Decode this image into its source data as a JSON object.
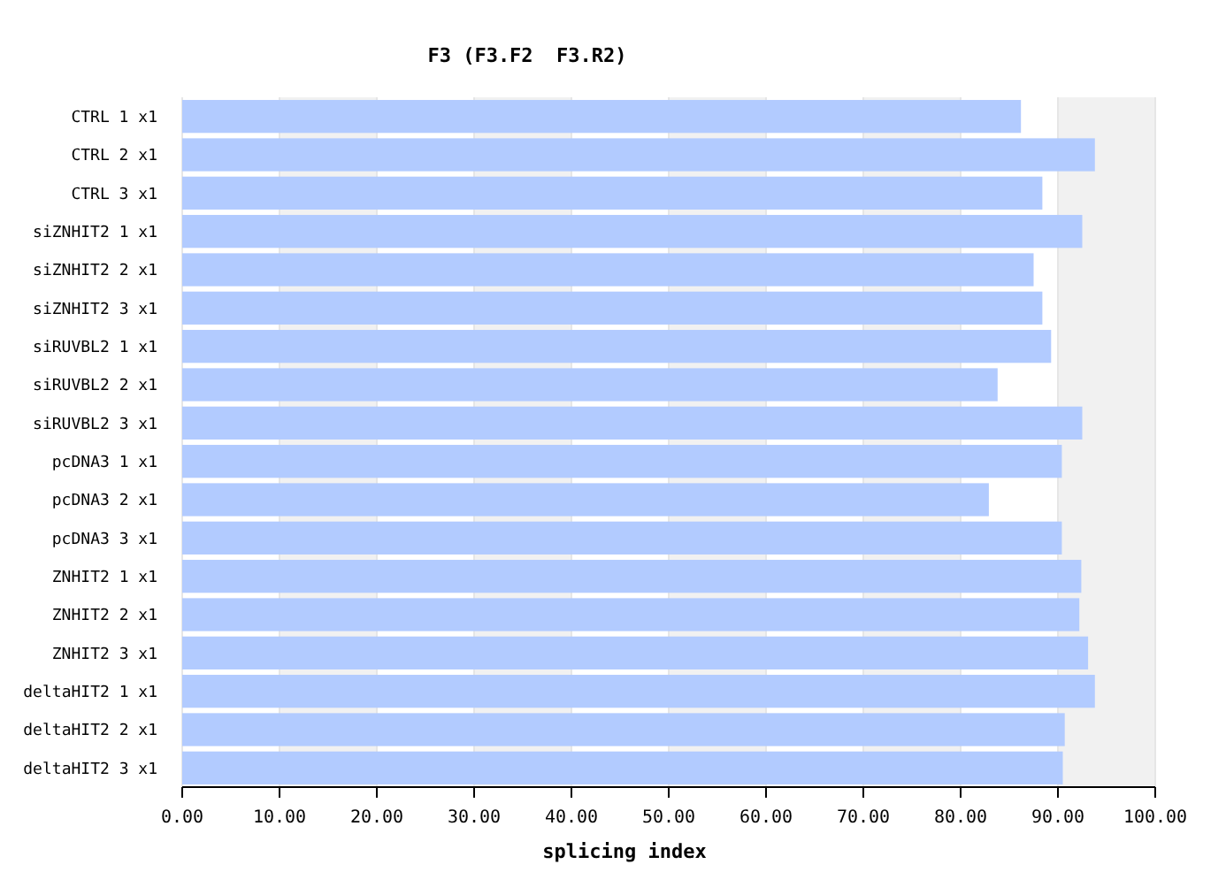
{
  "chart_data": {
    "type": "bar",
    "orientation": "horizontal",
    "title": "F3 (F3.F2  F3.R2)",
    "xlabel": "splicing index",
    "categories": [
      "CTRL 1 x1",
      "CTRL 2 x1",
      "CTRL 3 x1",
      "siZNHIT2 1 x1",
      "siZNHIT2 2 x1",
      "siZNHIT2 3 x1",
      "siRUVBL2 1 x1",
      "siRUVBL2 2 x1",
      "siRUVBL2 3 x1",
      "pcDNA3 1 x1",
      "pcDNA3 2 x1",
      "pcDNA3 3 x1",
      "ZNHIT2 1 x1",
      "ZNHIT2 2 x1",
      "ZNHIT2 3 x1",
      "deltaHIT2 1 x1",
      "deltaHIT2 2 x1",
      "deltaHIT2 3 x1"
    ],
    "values": [
      86.2,
      93.8,
      88.4,
      92.5,
      87.5,
      88.4,
      89.3,
      83.8,
      92.5,
      90.4,
      82.9,
      90.4,
      92.4,
      92.2,
      93.1,
      93.8,
      90.7,
      90.5
    ],
    "color": "#b2cbff",
    "xlim": [
      0,
      100
    ],
    "xticks": [
      {
        "value": 0,
        "label": "0.00"
      },
      {
        "value": 10,
        "label": "10.00"
      },
      {
        "value": 20,
        "label": "20.00"
      },
      {
        "value": 30,
        "label": "30.00"
      },
      {
        "value": 40,
        "label": "40.00"
      },
      {
        "value": 50,
        "label": "50.00"
      },
      {
        "value": 60,
        "label": "60.00"
      },
      {
        "value": 70,
        "label": "70.00"
      },
      {
        "value": 80,
        "label": "80.00"
      },
      {
        "value": 90,
        "label": "90.00"
      },
      {
        "value": 100,
        "label": "100.00"
      }
    ],
    "grid": "x"
  }
}
